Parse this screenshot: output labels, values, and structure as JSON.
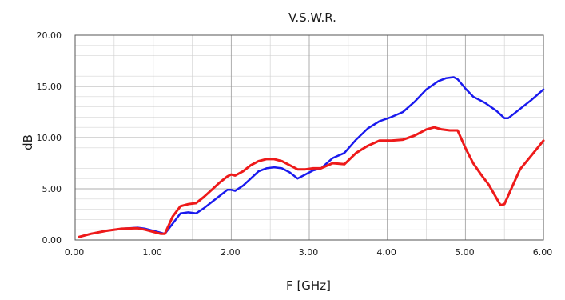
{
  "chart_data": {
    "type": "line",
    "title": "V.S.W.R.",
    "xlabel": "F [GHz]",
    "ylabel": "dB",
    "xlim": [
      0,
      6
    ],
    "ylim": [
      0,
      20
    ],
    "xticks": [
      "0.00",
      "1.00",
      "2.00",
      "3.00",
      "4.00",
      "5.00",
      "6.00"
    ],
    "yticks": [
      "0.00",
      "5.00",
      "10.00",
      "15.00",
      "20.00"
    ],
    "grid": true,
    "series": [
      {
        "color": "#1a1aee",
        "x": [
          0.05,
          0.2,
          0.4,
          0.6,
          0.8,
          0.9,
          1.0,
          1.1,
          1.15,
          1.25,
          1.35,
          1.45,
          1.55,
          1.65,
          1.75,
          1.85,
          1.95,
          2.0,
          2.05,
          2.15,
          2.25,
          2.35,
          2.45,
          2.55,
          2.65,
          2.75,
          2.85,
          2.95,
          3.05,
          3.15,
          3.3,
          3.45,
          3.6,
          3.75,
          3.9,
          4.05,
          4.2,
          4.35,
          4.5,
          4.65,
          4.75,
          4.85,
          4.9,
          5.0,
          5.1,
          5.25,
          5.4,
          5.5,
          5.55,
          5.7,
          5.85,
          6.0
        ],
        "y": [
          0.3,
          0.6,
          0.9,
          1.1,
          1.2,
          1.1,
          0.9,
          0.7,
          0.6,
          1.6,
          2.6,
          2.7,
          2.6,
          3.1,
          3.7,
          4.3,
          4.9,
          4.9,
          4.8,
          5.3,
          6.0,
          6.7,
          7.0,
          7.1,
          7.0,
          6.6,
          6.0,
          6.4,
          6.8,
          7.0,
          8.0,
          8.5,
          9.8,
          10.9,
          11.6,
          12.0,
          12.5,
          13.5,
          14.7,
          15.5,
          15.8,
          15.9,
          15.7,
          14.8,
          14.0,
          13.4,
          12.6,
          11.9,
          11.9,
          12.8,
          13.7,
          14.7
        ]
      },
      {
        "color": "#ee1a1a",
        "x": [
          0.05,
          0.2,
          0.4,
          0.6,
          0.8,
          0.9,
          1.0,
          1.1,
          1.15,
          1.25,
          1.35,
          1.45,
          1.55,
          1.65,
          1.75,
          1.85,
          1.95,
          2.0,
          2.05,
          2.15,
          2.25,
          2.35,
          2.45,
          2.55,
          2.65,
          2.75,
          2.85,
          2.95,
          3.05,
          3.15,
          3.3,
          3.45,
          3.6,
          3.75,
          3.9,
          4.05,
          4.2,
          4.35,
          4.5,
          4.6,
          4.7,
          4.8,
          4.9,
          5.0,
          5.1,
          5.2,
          5.3,
          5.45,
          5.5,
          5.6,
          5.7,
          5.85,
          6.0
        ],
        "y": [
          0.3,
          0.6,
          0.9,
          1.1,
          1.15,
          1.0,
          0.8,
          0.6,
          0.6,
          2.3,
          3.3,
          3.5,
          3.6,
          4.2,
          4.9,
          5.6,
          6.2,
          6.4,
          6.3,
          6.7,
          7.3,
          7.7,
          7.9,
          7.9,
          7.7,
          7.3,
          6.9,
          6.9,
          7.0,
          7.0,
          7.5,
          7.4,
          8.5,
          9.2,
          9.7,
          9.7,
          9.8,
          10.2,
          10.8,
          11.0,
          10.8,
          10.7,
          10.7,
          9.0,
          7.5,
          6.4,
          5.4,
          3.4,
          3.5,
          5.2,
          6.9,
          8.3,
          9.7
        ]
      }
    ]
  }
}
